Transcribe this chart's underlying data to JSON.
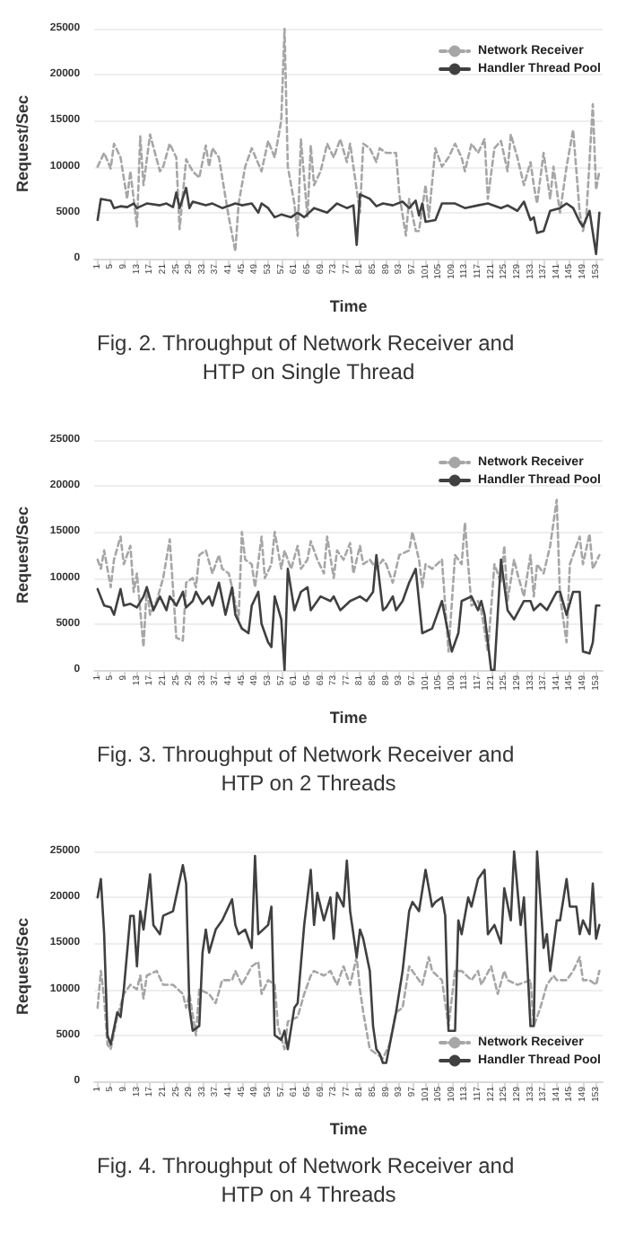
{
  "chart_data": [
    {
      "type": "line",
      "title": "Fig. 2. Throughput of Network Receiver and HTP on Single Thread",
      "xlabel": "Time",
      "ylabel": "Request/Sec",
      "xlim": [
        0,
        155
      ],
      "xticks": [
        1,
        5,
        9,
        13,
        17,
        21,
        25,
        29,
        33,
        37,
        41,
        45,
        49,
        53,
        57,
        61,
        65,
        69,
        73,
        77,
        81,
        85,
        89,
        93,
        97,
        101,
        105,
        109,
        113,
        117,
        121,
        125,
        129,
        133,
        137,
        141,
        145,
        149,
        153
      ],
      "ylim": [
        0,
        25000
      ],
      "yticks": [
        0,
        5000,
        10000,
        15000,
        20000,
        25000
      ],
      "grid": "y",
      "legend": "top right",
      "marker": "none",
      "series": [
        {
          "name": "Network Receiver",
          "color": "#a6a6a6",
          "line_style": "dashed",
          "x": [
            1,
            3,
            5,
            6,
            8,
            10,
            11,
            13,
            14,
            15,
            17,
            20,
            21,
            23,
            25,
            26,
            28,
            30,
            32,
            34,
            35,
            36,
            38,
            41,
            43,
            44,
            46,
            48,
            51,
            53,
            55,
            57,
            58,
            59,
            61,
            62,
            63,
            65,
            66,
            67,
            69,
            71,
            73,
            75,
            77,
            78,
            80,
            81,
            82,
            84,
            86,
            87,
            89,
            92,
            93,
            95,
            96,
            98,
            99,
            101,
            102,
            104,
            106,
            108,
            110,
            112,
            113,
            115,
            117,
            119,
            120,
            122,
            124,
            126,
            127,
            129,
            131,
            133,
            134,
            135,
            137,
            139,
            140,
            142,
            144,
            146,
            148,
            149,
            150,
            152,
            153,
            154
          ],
          "values": [
            10000,
            11500,
            9800,
            12500,
            11000,
            6500,
            9500,
            3500,
            13300,
            8000,
            13500,
            9500,
            10000,
            12500,
            11000,
            3200,
            10800,
            9500,
            8800,
            12300,
            10000,
            12000,
            11000,
            4500,
            800,
            6000,
            10000,
            12000,
            9500,
            12800,
            11000,
            15000,
            25000,
            10000,
            6000,
            2500,
            13000,
            4500,
            12300,
            8000,
            9500,
            12500,
            11000,
            13000,
            10500,
            12500,
            7500,
            5000,
            12500,
            12000,
            10500,
            12000,
            11500,
            11500,
            7000,
            2500,
            6500,
            3000,
            3000,
            8000,
            4500,
            12000,
            10000,
            11000,
            12500,
            11000,
            9500,
            12500,
            11500,
            13000,
            6500,
            12000,
            12800,
            9500,
            13500,
            11000,
            8000,
            10500,
            8000,
            6000,
            11500,
            6500,
            10000,
            5000,
            10000,
            14000,
            5000,
            3000,
            4500,
            16800,
            7500,
            9500
          ]
        },
        {
          "name": "Handler Thread Pool",
          "color": "#404040",
          "line_style": "solid",
          "x": [
            1,
            2,
            5,
            6,
            8,
            10,
            12,
            13,
            16,
            20,
            22,
            24,
            25,
            26,
            28,
            29,
            30,
            34,
            36,
            39,
            43,
            45,
            48,
            50,
            51,
            53,
            55,
            57,
            60,
            62,
            64,
            67,
            71,
            74,
            77,
            79,
            80,
            81,
            84,
            86,
            88,
            91,
            94,
            96,
            98,
            99,
            100,
            101,
            104,
            106,
            110,
            113,
            117,
            120,
            124,
            126,
            129,
            131,
            133,
            134,
            135,
            137,
            139,
            142,
            144,
            146,
            148,
            149,
            151,
            153,
            154
          ],
          "values": [
            4200,
            6500,
            6300,
            5500,
            5700,
            5600,
            6000,
            5500,
            6000,
            5800,
            6000,
            5600,
            7200,
            5500,
            7700,
            5500,
            6200,
            5800,
            6000,
            5500,
            6000,
            5800,
            6000,
            5000,
            6000,
            5500,
            4500,
            4800,
            4500,
            5000,
            4500,
            5500,
            5000,
            6000,
            5500,
            5800,
            1500,
            7000,
            6500,
            5700,
            6000,
            5800,
            6200,
            5500,
            6300,
            4700,
            6000,
            4000,
            4200,
            6000,
            6000,
            5500,
            5800,
            6000,
            5500,
            5800,
            5200,
            6200,
            4200,
            4500,
            2800,
            3000,
            5200,
            5500,
            6000,
            5500,
            4000,
            3500,
            5200,
            500,
            5000
          ]
        }
      ]
    },
    {
      "type": "line",
      "title": "Fig. 3. Throughput of Network Receiver and HTP on 2 Threads",
      "xlabel": "Time",
      "ylabel": "Request/Sec",
      "xlim": [
        0,
        155
      ],
      "xticks": [
        1,
        5,
        9,
        13,
        17,
        21,
        25,
        29,
        33,
        37,
        41,
        45,
        49,
        53,
        57,
        61,
        65,
        69,
        73,
        77,
        81,
        85,
        89,
        93,
        97,
        101,
        105,
        109,
        113,
        117,
        121,
        125,
        129,
        133,
        137,
        141,
        145,
        149,
        153
      ],
      "ylim": [
        0,
        25000
      ],
      "yticks": [
        0,
        5000,
        10000,
        15000,
        20000,
        25000
      ],
      "grid": "y",
      "legend": "top right",
      "marker": "none",
      "series": [
        {
          "name": "Network Receiver",
          "color": "#a6a6a6",
          "line_style": "dashed",
          "x": [
            1,
            2,
            3,
            5,
            6,
            8,
            9,
            11,
            12,
            13,
            15,
            16,
            17,
            19,
            21,
            23,
            25,
            27,
            28,
            30,
            31,
            32,
            34,
            36,
            38,
            39,
            41,
            42,
            44,
            45,
            46,
            48,
            49,
            51,
            52,
            54,
            55,
            57,
            58,
            60,
            62,
            63,
            65,
            66,
            68,
            70,
            71,
            73,
            74,
            76,
            78,
            79,
            81,
            82,
            84,
            86,
            88,
            89,
            91,
            93,
            96,
            97,
            99,
            100,
            101,
            103,
            106,
            108,
            110,
            112,
            113,
            115,
            117,
            118,
            120,
            122,
            124,
            125,
            126,
            128,
            129,
            131,
            133,
            134,
            135,
            137,
            139,
            141,
            142,
            144,
            145,
            148,
            149,
            151,
            152,
            154
          ],
          "values": [
            12000,
            11000,
            13000,
            9000,
            12000,
            14500,
            11500,
            13500,
            8500,
            10500,
            2500,
            9000,
            6000,
            7500,
            10000,
            14200,
            3500,
            3200,
            9500,
            10000,
            9000,
            12500,
            13000,
            10500,
            12500,
            11000,
            10500,
            9000,
            5500,
            15000,
            12000,
            11500,
            9000,
            14500,
            10000,
            11500,
            15000,
            11000,
            13000,
            11000,
            13500,
            11000,
            12000,
            14000,
            12000,
            10500,
            14500,
            10000,
            13000,
            12000,
            13800,
            10500,
            13500,
            11500,
            12000,
            11000,
            12000,
            11500,
            9500,
            12500,
            13000,
            15000,
            12000,
            9000,
            11500,
            11000,
            12000,
            2000,
            12500,
            11500,
            16000,
            7000,
            7500,
            6500,
            2000,
            11500,
            9500,
            13500,
            7500,
            12000,
            10500,
            8000,
            12500,
            8000,
            11500,
            10500,
            13500,
            18500,
            8000,
            3000,
            11500,
            14500,
            11500,
            14800,
            11000,
            12500
          ]
        },
        {
          "name": "Handler Thread Pool",
          "color": "#404040",
          "line_style": "solid",
          "x": [
            1,
            3,
            5,
            6,
            8,
            9,
            11,
            13,
            15,
            16,
            18,
            20,
            22,
            23,
            25,
            27,
            28,
            30,
            31,
            33,
            35,
            36,
            38,
            40,
            42,
            43,
            45,
            47,
            48,
            50,
            51,
            53,
            54,
            55,
            57,
            58,
            59,
            61,
            63,
            65,
            66,
            69,
            72,
            73,
            75,
            78,
            81,
            83,
            85,
            86,
            88,
            89,
            91,
            92,
            94,
            96,
            98,
            100,
            103,
            104,
            106,
            109,
            111,
            112,
            115,
            117,
            118,
            119,
            121,
            122,
            124,
            126,
            128,
            131,
            133,
            134,
            136,
            138,
            141,
            142,
            144,
            146,
            148,
            149,
            151,
            152,
            153,
            154
          ],
          "values": [
            8800,
            7000,
            6800,
            6000,
            8800,
            7000,
            7200,
            6800,
            8000,
            9000,
            6500,
            8000,
            6500,
            8000,
            7000,
            8500,
            6800,
            7500,
            8500,
            7200,
            8000,
            7000,
            9500,
            6000,
            9000,
            6000,
            4500,
            4000,
            7000,
            8500,
            5000,
            3000,
            2500,
            8000,
            5500,
            0,
            11000,
            6500,
            8500,
            9000,
            6500,
            8000,
            7500,
            8000,
            6500,
            7500,
            8000,
            7500,
            8500,
            12500,
            6500,
            6800,
            8000,
            6500,
            7500,
            9500,
            11000,
            4000,
            4500,
            5500,
            7500,
            2000,
            4000,
            7500,
            8000,
            6500,
            7500,
            6000,
            0,
            0,
            12000,
            6500,
            5500,
            7500,
            7500,
            6500,
            7200,
            6500,
            8500,
            8500,
            6000,
            8500,
            8500,
            2000,
            1800,
            3000,
            7000,
            7000
          ]
        }
      ]
    },
    {
      "type": "line",
      "title": "Fig. 4. Throughput of Network Receiver and HTP on 4 Threads",
      "xlabel": "Time",
      "ylabel": "Request/Sec",
      "xlim": [
        0,
        155
      ],
      "xticks": [
        1,
        5,
        9,
        13,
        17,
        21,
        25,
        29,
        33,
        37,
        41,
        45,
        49,
        53,
        57,
        61,
        65,
        69,
        73,
        77,
        81,
        85,
        89,
        93,
        97,
        101,
        105,
        109,
        113,
        117,
        121,
        125,
        129,
        133,
        137,
        141,
        145,
        149,
        153
      ],
      "ylim": [
        0,
        25000
      ],
      "yticks": [
        0,
        5000,
        10000,
        15000,
        20000,
        25000
      ],
      "grid": "y",
      "legend": "bottom right",
      "marker": "none",
      "series": [
        {
          "name": "Network Receiver",
          "color": "#a6a6a6",
          "line_style": "dashed",
          "x": [
            1,
            2,
            3,
            4,
            5,
            7,
            9,
            11,
            13,
            14,
            15,
            16,
            19,
            21,
            24,
            27,
            28,
            29,
            31,
            32,
            35,
            37,
            39,
            42,
            43,
            45,
            48,
            50,
            51,
            53,
            55,
            56,
            58,
            59,
            62,
            64,
            66,
            67,
            70,
            72,
            74,
            76,
            78,
            80,
            81,
            82,
            84,
            86,
            88,
            90,
            92,
            94,
            96,
            98,
            100,
            102,
            103,
            106,
            108,
            110,
            112,
            115,
            117,
            118,
            121,
            123,
            125,
            126,
            129,
            133,
            134,
            136,
            138,
            140,
            141,
            144,
            146,
            148,
            149,
            151,
            153,
            154
          ],
          "values": [
            8000,
            12000,
            9000,
            4000,
            3500,
            7000,
            9500,
            10500,
            10000,
            11500,
            9000,
            11500,
            12000,
            10500,
            10500,
            9500,
            8000,
            9500,
            5000,
            10000,
            9500,
            8500,
            11000,
            11000,
            12000,
            10500,
            12500,
            13000,
            9500,
            11000,
            10500,
            6000,
            3500,
            6500,
            7000,
            9500,
            11500,
            12000,
            11500,
            12000,
            10500,
            12500,
            10500,
            13500,
            10000,
            7500,
            3500,
            3000,
            2500,
            4000,
            7500,
            8000,
            12500,
            11500,
            10500,
            13500,
            12000,
            11000,
            6000,
            12000,
            12000,
            11000,
            12000,
            10500,
            12500,
            9500,
            12000,
            11000,
            10500,
            11000,
            6000,
            8000,
            10500,
            11500,
            11000,
            11000,
            12000,
            13500,
            11000,
            11000,
            10500,
            12000
          ]
        },
        {
          "name": "Handler Thread Pool",
          "color": "#404040",
          "line_style": "solid",
          "x": [
            1,
            2,
            3,
            4,
            5,
            7,
            8,
            9,
            11,
            12,
            13,
            14,
            15,
            17,
            18,
            20,
            21,
            24,
            27,
            28,
            29,
            30,
            32,
            33,
            34,
            35,
            37,
            39,
            42,
            43,
            44,
            46,
            48,
            49,
            50,
            53,
            54,
            55,
            57,
            58,
            59,
            61,
            62,
            64,
            66,
            67,
            68,
            70,
            72,
            73,
            74,
            76,
            77,
            78,
            80,
            81,
            82,
            84,
            85,
            86,
            87,
            88,
            89,
            92,
            94,
            96,
            97,
            99,
            101,
            103,
            104,
            106,
            107,
            108,
            110,
            111,
            112,
            114,
            115,
            117,
            119,
            120,
            122,
            124,
            125,
            127,
            128,
            130,
            131,
            133,
            134,
            135,
            137,
            138,
            139,
            141,
            142,
            144,
            145,
            147,
            148,
            149,
            151,
            152,
            153,
            154
          ],
          "values": [
            20000,
            22000,
            16000,
            5000,
            4000,
            7500,
            7000,
            10000,
            18000,
            18000,
            12500,
            18500,
            16500,
            22500,
            17000,
            16000,
            18000,
            18500,
            23500,
            21500,
            8000,
            5500,
            6000,
            14000,
            16500,
            14000,
            16500,
            17500,
            19800,
            17000,
            16000,
            16500,
            14500,
            24500,
            16000,
            17000,
            19000,
            5000,
            4500,
            5500,
            3500,
            8000,
            8500,
            17000,
            23000,
            17000,
            20500,
            17500,
            20000,
            15500,
            20500,
            19000,
            24000,
            18500,
            13500,
            16500,
            15500,
            12000,
            6000,
            3500,
            3000,
            2000,
            2000,
            7500,
            12000,
            18500,
            19500,
            18500,
            23000,
            19000,
            19500,
            20000,
            18000,
            5500,
            5500,
            17500,
            16000,
            20000,
            19000,
            22000,
            23000,
            16000,
            17000,
            15000,
            21000,
            17500,
            25000,
            17000,
            20000,
            6000,
            6000,
            25000,
            14500,
            16000,
            12000,
            17500,
            17500,
            22000,
            19000,
            19000,
            16000,
            17500,
            16000,
            21500,
            15500,
            17000
          ]
        }
      ]
    }
  ]
}
